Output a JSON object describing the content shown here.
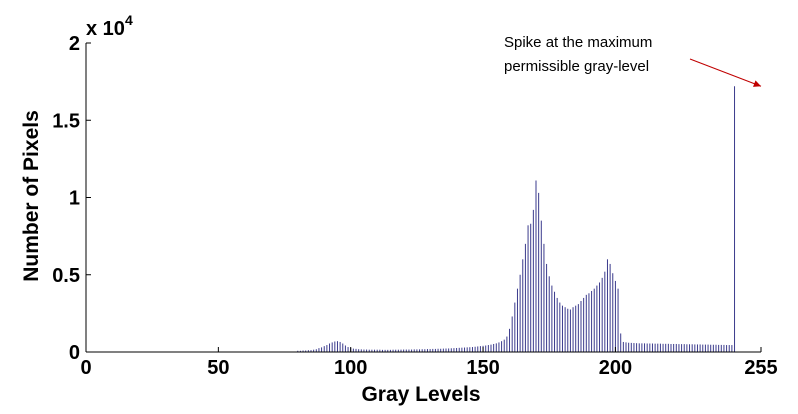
{
  "chart_data": {
    "type": "bar",
    "title": "",
    "xlabel": "Gray Levels",
    "ylabel": "Number of Pixels",
    "y_scale_label": "x 10",
    "y_scale_exponent": "4",
    "xlim": [
      0,
      255
    ],
    "ylim": [
      0,
      20000
    ],
    "xticks": [
      0,
      50,
      100,
      150,
      200,
      255
    ],
    "yticks": [
      {
        "value": 0,
        "label": "0"
      },
      {
        "value": 5000,
        "label": "0.5"
      },
      {
        "value": 10000,
        "label": "1"
      },
      {
        "value": 15000,
        "label": "1.5"
      },
      {
        "value": 20000,
        "label": "2"
      }
    ],
    "bar_color": "#3a3a8c",
    "annotation": {
      "lines": [
        "Spike at the maximum",
        "permissible gray-level"
      ],
      "arrow_color": "#c00000",
      "points_to": {
        "x": 255,
        "y": 17200
      }
    },
    "series": [
      {
        "name": "histogram",
        "x_start": 0,
        "values": [
          0,
          0,
          0,
          0,
          0,
          0,
          0,
          0,
          0,
          0,
          0,
          0,
          0,
          0,
          0,
          0,
          0,
          0,
          0,
          0,
          0,
          0,
          0,
          0,
          0,
          0,
          0,
          0,
          0,
          0,
          0,
          0,
          0,
          0,
          0,
          0,
          0,
          0,
          0,
          0,
          0,
          0,
          0,
          0,
          0,
          0,
          0,
          0,
          0,
          0,
          0,
          0,
          0,
          0,
          0,
          0,
          0,
          0,
          0,
          0,
          0,
          0,
          0,
          0,
          0,
          0,
          0,
          0,
          0,
          0,
          0,
          0,
          0,
          0,
          0,
          0,
          0,
          0,
          0,
          0,
          80,
          80,
          100,
          100,
          120,
          120,
          150,
          180,
          250,
          300,
          380,
          450,
          550,
          620,
          680,
          700,
          650,
          550,
          420,
          320,
          260,
          220,
          200,
          180,
          170,
          160,
          160,
          150,
          150,
          150,
          150,
          150,
          140,
          140,
          140,
          140,
          150,
          150,
          150,
          150,
          160,
          160,
          160,
          160,
          170,
          170,
          170,
          180,
          180,
          190,
          190,
          200,
          200,
          210,
          210,
          220,
          230,
          230,
          240,
          250,
          260,
          270,
          280,
          290,
          300,
          310,
          320,
          340,
          360,
          380,
          400,
          420,
          450,
          480,
          520,
          560,
          620,
          700,
          800,
          1000,
          1500,
          2300,
          3200,
          4100,
          5000,
          6000,
          7000,
          8200,
          8300,
          9200,
          11100,
          10300,
          8500,
          7000,
          5700,
          4900,
          4300,
          3900,
          3500,
          3200,
          3000,
          2900,
          2800,
          2750,
          2900,
          3000,
          3100,
          3300,
          3500,
          3700,
          3800,
          3950,
          4100,
          4300,
          4500,
          4800,
          5200,
          6000,
          5700,
          5100,
          4600,
          4100,
          1200,
          650,
          620,
          600,
          590,
          580,
          570,
          560,
          560,
          560,
          550,
          550,
          550,
          540,
          540,
          540,
          530,
          530,
          530,
          520,
          520,
          520,
          510,
          510,
          510,
          500,
          500,
          500,
          490,
          490,
          490,
          480,
          480,
          480,
          470,
          470,
          470,
          460,
          460,
          460,
          450,
          450,
          450,
          17200
        ]
      }
    ]
  }
}
